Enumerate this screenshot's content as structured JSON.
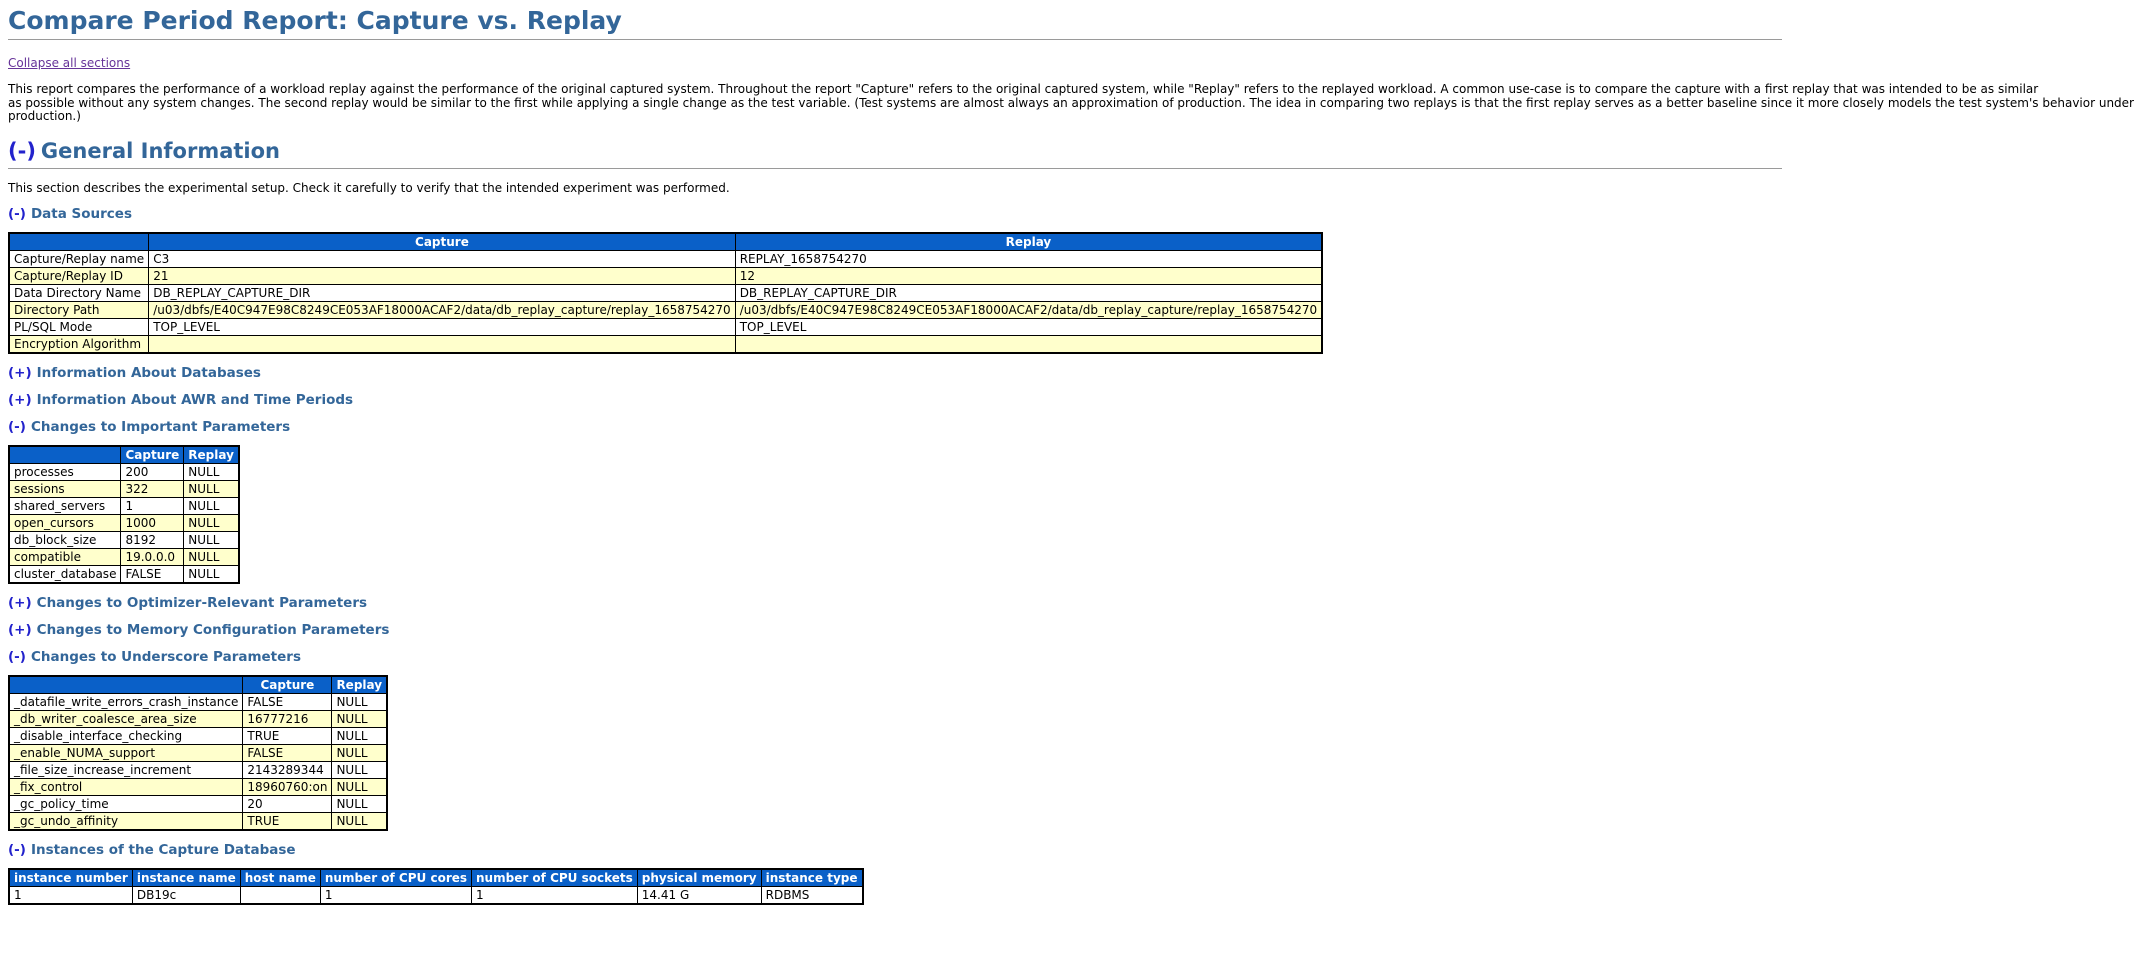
{
  "colors": {
    "header_bg": "#0A60C8",
    "row_alt": "#FFFFCC",
    "heading": "#336699",
    "link": "#2222CC",
    "visited_link": "#663399"
  },
  "page": {
    "title": "Compare Period Report: Capture vs. Replay",
    "collapse_link": "Collapse all sections",
    "intro_lines": [
      "This report compares the performance of a workload replay against the performance of the original captured system. Throughout the report \"Capture\" refers to the original captured system, while \"Replay\" refers to the replayed workload. A common use-case is to compare the capture with a first replay that was intended to be as similar",
      "as possible without any system changes. The second replay would be similar to the first while applying a single change as the test variable. (Test systems are almost always an approximation of production. The idea in comparing two replays is that the first replay serves as a better baseline since it more closely models the test system's behavior under",
      "production.)"
    ]
  },
  "sections": {
    "general": {
      "toggle": "(-)",
      "title": "General Information",
      "description": "This section describes the experimental setup. Check it carefully to verify that the intended experiment was performed."
    },
    "data_sources": {
      "toggle": "(-)",
      "title": "Data Sources",
      "table": {
        "headers": [
          "",
          "Capture",
          "Replay"
        ],
        "rows": [
          [
            "Capture/Replay name",
            "C3",
            "REPLAY_1658754270"
          ],
          [
            "Capture/Replay ID",
            "21",
            "12"
          ],
          [
            "Data Directory Name",
            "DB_REPLAY_CAPTURE_DIR",
            "DB_REPLAY_CAPTURE_DIR"
          ],
          [
            "Directory Path",
            "/u03/dbfs/E40C947E98C8249CE053AF18000ACAF2/data/db_replay_capture/replay_1658754270",
            "/u03/dbfs/E40C947E98C8249CE053AF18000ACAF2/data/db_replay_capture/replay_1658754270"
          ],
          [
            "PL/SQL Mode",
            "TOP_LEVEL",
            "TOP_LEVEL"
          ],
          [
            "Encryption Algorithm",
            "",
            ""
          ]
        ]
      }
    },
    "info_databases": {
      "toggle": "(+)",
      "title": "Information About Databases"
    },
    "info_awr": {
      "toggle": "(+)",
      "title": "Information About AWR and Time Periods"
    },
    "important_params": {
      "toggle": "(-)",
      "title": "Changes to Important Parameters",
      "table": {
        "headers": [
          "",
          "Capture",
          "Replay"
        ],
        "rows": [
          [
            "processes",
            "200",
            "NULL"
          ],
          [
            "sessions",
            "322",
            "NULL"
          ],
          [
            "shared_servers",
            "1",
            "NULL"
          ],
          [
            "open_cursors",
            "1000",
            "NULL"
          ],
          [
            "db_block_size",
            "8192",
            "NULL"
          ],
          [
            "compatible",
            "19.0.0.0",
            "NULL"
          ],
          [
            "cluster_database",
            "FALSE",
            "NULL"
          ]
        ]
      }
    },
    "optimizer_params": {
      "toggle": "(+)",
      "title": "Changes to Optimizer-Relevant Parameters"
    },
    "memory_params": {
      "toggle": "(+)",
      "title": "Changes to Memory Configuration Parameters"
    },
    "underscore_params": {
      "toggle": "(-)",
      "title": "Changes to Underscore Parameters",
      "table": {
        "headers": [
          "",
          "Capture",
          "Replay"
        ],
        "rows": [
          [
            "_datafile_write_errors_crash_instance",
            "FALSE",
            "NULL"
          ],
          [
            "_db_writer_coalesce_area_size",
            "16777216",
            "NULL"
          ],
          [
            "_disable_interface_checking",
            "TRUE",
            "NULL"
          ],
          [
            "_enable_NUMA_support",
            "FALSE",
            "NULL"
          ],
          [
            "_file_size_increase_increment",
            "2143289344",
            "NULL"
          ],
          [
            "_fix_control",
            "18960760:on",
            "NULL"
          ],
          [
            "_gc_policy_time",
            "20",
            "NULL"
          ],
          [
            "_gc_undo_affinity",
            "TRUE",
            "NULL"
          ]
        ]
      }
    },
    "instances": {
      "toggle": "(-)",
      "title": "Instances of the Capture Database",
      "table": {
        "headers": [
          "instance number",
          "instance name",
          "host name",
          "number of CPU cores",
          "number of CPU sockets",
          "physical memory",
          "instance type"
        ],
        "rows": [
          [
            "1",
            "DB19c",
            "",
            "1",
            "1",
            "14.41 G",
            "RDBMS"
          ]
        ]
      }
    }
  }
}
